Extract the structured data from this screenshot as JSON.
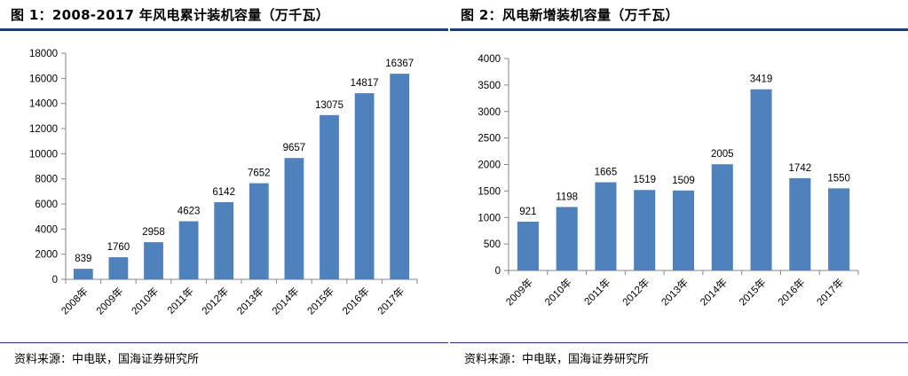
{
  "figures": [
    {
      "title": "图 1：2008-2017 年风电累计装机容量（万千瓦）",
      "source": "资料来源：中电联，国海证券研究所",
      "chart_data": {
        "type": "bar",
        "categories": [
          "2008年",
          "2009年",
          "2010年",
          "2011年",
          "2012年",
          "2013年",
          "2014年",
          "2015年",
          "2016年",
          "2017年"
        ],
        "values": [
          839,
          1760,
          2958,
          4623,
          6142,
          7652,
          9657,
          13075,
          14817,
          16367
        ],
        "ylim": [
          0,
          18000
        ],
        "yticks": [
          0,
          2000,
          4000,
          6000,
          8000,
          10000,
          12000,
          14000,
          16000,
          18000
        ],
        "bar_color": "#4f81bd",
        "grid": false,
        "legend": "none"
      }
    },
    {
      "title": "图 2：风电新增装机容量（万千瓦）",
      "source": "资料来源：中电联，国海证券研究所",
      "chart_data": {
        "type": "bar",
        "categories": [
          "2009年",
          "2010年",
          "2011年",
          "2012年",
          "2013年",
          "2014年",
          "2015年",
          "2016年",
          "2017年"
        ],
        "values": [
          921,
          1198,
          1665,
          1519,
          1509,
          2005,
          3419,
          1742,
          1550
        ],
        "ylim": [
          0,
          4000
        ],
        "yticks": [
          0,
          500,
          1000,
          1500,
          2000,
          2500,
          3000,
          3500,
          4000
        ],
        "bar_color": "#4f81bd",
        "grid": false,
        "legend": "none"
      }
    }
  ]
}
